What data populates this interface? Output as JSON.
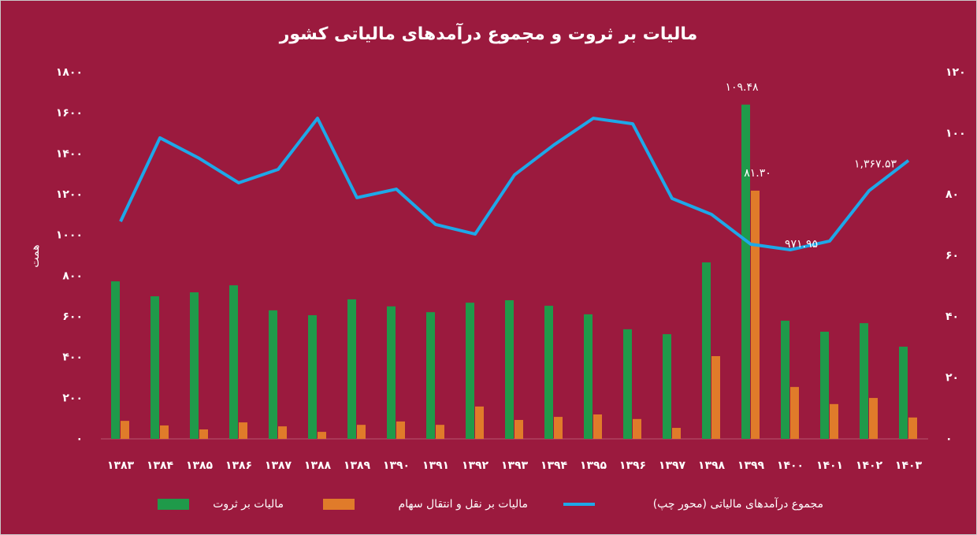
{
  "chart_data": {
    "type": "bar-line",
    "title": "مالیات بر ثروت و مجموع درآمدهای مالیاتی کشور",
    "ylabel": "همت",
    "categories": [
      "۱۳۸۳",
      "۱۳۸۴",
      "۱۳۸۵",
      "۱۳۸۶",
      "۱۳۸۷",
      "۱۳۸۸",
      "۱۳۸۹",
      "۱۳۹۰",
      "۱۳۹۱",
      "۱۳۹۲",
      "۱۳۹۳",
      "۱۳۹۴",
      "۱۳۹۵",
      "۱۳۹۶",
      "۱۳۹۷",
      "۱۳۹۸",
      "۱۳۹۹",
      "۱۴۰۰",
      "۱۴۰۱",
      "۱۴۰۲",
      "۱۴۰۳"
    ],
    "series": [
      {
        "name": "مالیات بر ثروت",
        "type": "bar",
        "axis": "y2",
        "color": "#1f9a4a",
        "values": [
          51.6,
          46.7,
          48.0,
          50.3,
          42.1,
          40.5,
          45.7,
          43.4,
          41.5,
          44.6,
          45.4,
          43.6,
          40.8,
          35.9,
          34.3,
          57.8,
          109.48,
          38.7,
          35.1,
          37.9,
          30.2
        ],
        "value_labels": [
          null,
          null,
          null,
          null,
          null,
          null,
          null,
          null,
          null,
          null,
          null,
          null,
          null,
          null,
          null,
          null,
          "۱۰۹.۴۸",
          null,
          null,
          null,
          null
        ]
      },
      {
        "name": "مالیات بر نقل و انتقال سهام",
        "type": "bar",
        "axis": "y2",
        "color": "#e07b2a",
        "values": [
          5.9,
          4.4,
          3.1,
          5.4,
          4.1,
          2.3,
          4.6,
          5.7,
          4.6,
          10.6,
          6.2,
          7.2,
          8.0,
          6.5,
          3.6,
          27.1,
          81.3,
          17.0,
          11.4,
          13.4,
          7.0
        ],
        "value_labels": [
          null,
          null,
          null,
          null,
          null,
          null,
          null,
          null,
          null,
          null,
          null,
          null,
          null,
          null,
          null,
          null,
          "۸۱.۳۰",
          null,
          null,
          null,
          null
        ]
      },
      {
        "name": "مجموع درآمدهای مالیاتی (محور چپ)",
        "type": "line",
        "axis": "y",
        "color": "#1ea8e8",
        "values": [
          1068,
          1479,
          1378,
          1258,
          1324,
          1575,
          1185,
          1227,
          1053,
          1006,
          1297,
          1444,
          1575,
          1548,
          1181,
          1103,
          956,
          929,
          971.95,
          1219,
          1367.53
        ],
        "value_labels": [
          null,
          null,
          null,
          null,
          null,
          null,
          null,
          null,
          null,
          null,
          null,
          null,
          null,
          null,
          null,
          null,
          null,
          null,
          "۹۷۱.۹۵",
          null,
          "۱,۳۶۷.۵۳"
        ]
      }
    ],
    "ylim": [
      0,
      1800
    ],
    "yticks": [
      {
        "value": 0,
        "label": "۰"
      },
      {
        "value": 200,
        "label": "۲۰۰"
      },
      {
        "value": 400,
        "label": "۴۰۰"
      },
      {
        "value": 600,
        "label": "۶۰۰"
      },
      {
        "value": 800,
        "label": "۸۰۰"
      },
      {
        "value": 1000,
        "label": "۱۰۰۰"
      },
      {
        "value": 1200,
        "label": "۱۲۰۰"
      },
      {
        "value": 1400,
        "label": "۱۴۰۰"
      },
      {
        "value": 1600,
        "label": "۱۶۰۰"
      },
      {
        "value": 1800,
        "label": "۱۸۰۰"
      }
    ],
    "y2lim": [
      0,
      120
    ],
    "y2ticks": [
      {
        "value": 0,
        "label": "۰"
      },
      {
        "value": 20,
        "label": "۲۰"
      },
      {
        "value": 40,
        "label": "۴۰"
      },
      {
        "value": 60,
        "label": "۶۰"
      },
      {
        "value": 80,
        "label": "۸۰"
      },
      {
        "value": 100,
        "label": "۱۰۰"
      },
      {
        "value": 120,
        "label": "۱۲۰"
      }
    ],
    "legend": "bottom"
  }
}
